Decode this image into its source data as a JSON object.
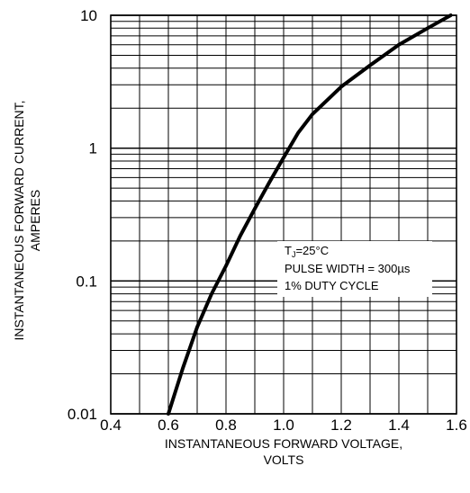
{
  "chart_data": {
    "type": "line",
    "xlabel": [
      "INSTANTANEOUS FORWARD VOLTAGE,",
      "VOLTS"
    ],
    "ylabel": [
      "INSTANTANEOUS FORWARD CURRENT,",
      "AMPERES"
    ],
    "xlim": [
      0.4,
      1.6
    ],
    "ylim": [
      0.01,
      10
    ],
    "yscale": "log",
    "grid": true,
    "x_ticks": [
      0.4,
      0.6,
      0.8,
      1.0,
      1.2,
      1.4,
      1.6
    ],
    "x_tick_labels": [
      "0.4",
      "0.6",
      "0.8",
      "1.0",
      "1.2",
      "1.4",
      "1.6"
    ],
    "y_ticks": [
      0.01,
      0.1,
      1,
      10
    ],
    "y_tick_labels": [
      "0.01",
      "0.1",
      "1",
      "10"
    ],
    "annotation": {
      "line1_main": "T",
      "line1_sub": "J",
      "line1_rest": "=25°C",
      "line2": "PULSE WIDTH = 300µs",
      "line3": "1% DUTY CYCLE"
    },
    "series": [
      {
        "x": [
          0.6,
          0.65,
          0.7,
          0.75,
          0.8,
          0.85,
          0.9,
          0.95,
          1.0,
          1.05,
          1.1,
          1.2,
          1.3,
          1.4,
          1.5,
          1.58
        ],
        "y": [
          0.01,
          0.022,
          0.045,
          0.08,
          0.13,
          0.22,
          0.35,
          0.55,
          0.85,
          1.3,
          1.8,
          2.9,
          4.2,
          6.0,
          8.0,
          10.0
        ]
      }
    ]
  }
}
